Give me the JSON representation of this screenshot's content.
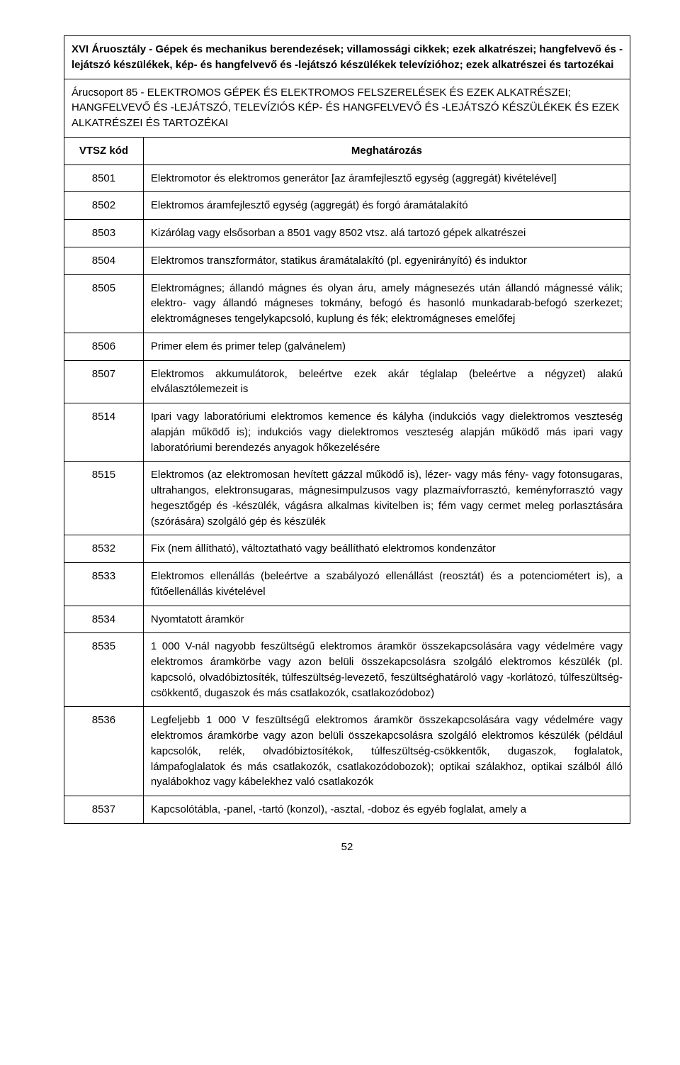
{
  "section_header": "XVI Áruosztály - Gépek és mechanikus berendezések; villamossági cikkek; ezek alkatrészei; hangfelvevő és -lejátszó készülékek, kép- és hangfelvevő és -lejátszó készülékek televízióhoz; ezek alkatrészei és tartozékai",
  "group_header": "Árucsoport 85 - ELEKTROMOS GÉPEK ÉS ELEKTROMOS FELSZERELÉSEK ÉS EZEK ALKATRÉSZEI; HANGFELVEVŐ ÉS -LEJÁTSZÓ, TELEVÍZIÓS KÉP- ÉS HANGFELVEVŐ ÉS -LEJÁTSZÓ KÉSZÜLÉKEK ÉS EZEK ALKATRÉSZEI ÉS TARTOZÉKAI",
  "columns": {
    "code": "VTSZ kód",
    "desc": "Meghatározás"
  },
  "rows": [
    {
      "code": "8501",
      "desc": "Elektromotor és elektromos generátor [az áramfejlesztő egység (aggregát) kivételével]"
    },
    {
      "code": "8502",
      "desc": "Elektromos áramfejlesztő egység (aggregát) és forgó áramátalakító"
    },
    {
      "code": "8503",
      "desc": "Kizárólag vagy elsősorban a 8501 vagy 8502 vtsz. alá tartozó gépek alkatrészei"
    },
    {
      "code": "8504",
      "desc": "Elektromos transzformátor, statikus áramátalakító (pl. egyenirányító) és induktor"
    },
    {
      "code": "8505",
      "desc": "Elektromágnes; állandó mágnes és olyan áru, amely mágnesezés után állandó mágnessé válik; elektro- vagy állandó mágneses tokmány, befogó és hasonló munkadarab-befogó szerkezet; elektromágneses tengelykapcsoló, kuplung és fék; elektromágneses emelőfej"
    },
    {
      "code": "8506",
      "desc": "Primer elem és primer telep (galvánelem)"
    },
    {
      "code": "8507",
      "desc": "Elektromos akkumulátorok, beleértve ezek akár téglalap (beleértve a négyzet) alakú elválasztólemezeit is"
    },
    {
      "code": "8514",
      "desc": "Ipari vagy laboratóriumi elektromos kemence és kályha (indukciós vagy dielektromos veszteség alapján működő is); indukciós vagy dielektromos veszteség alapján működő más ipari vagy laboratóriumi berendezés anyagok hőkezelésére"
    },
    {
      "code": "8515",
      "desc": "Elektromos (az elektromosan hevített gázzal működő is), lézer- vagy más fény- vagy fotonsugaras, ultrahangos, elektronsugaras, mágnesimpulzusos vagy plazmaívforrasztó, keményforrasztó vagy hegesztőgép és -készülék, vágásra alkalmas kivitelben is; fém vagy cermet meleg porlasztására (szórására) szolgáló gép és készülék"
    },
    {
      "code": "8532",
      "desc": "Fix (nem állítható), változtatható vagy beállítható elektromos kondenzátor"
    },
    {
      "code": "8533",
      "desc": "Elektromos ellenállás (beleértve a szabályozó ellenállást (reosztát) és a potenciométert is), a fűtőellenállás kivételével"
    },
    {
      "code": "8534",
      "desc": "Nyomtatott áramkör"
    },
    {
      "code": "8535",
      "desc": "1 000 V-nál nagyobb feszültségű elektromos áramkör összekapcsolására vagy védelmére vagy elektromos áramkörbe vagy azon belüli összekapcsolásra szolgáló elektromos készülék (pl. kapcsoló, olvadóbiztosíték, túlfeszültség-levezető, feszültséghatároló vagy -korlátozó, túlfeszültség-csökkentő, dugaszok és más csatlakozók, csatlakozódoboz)"
    },
    {
      "code": "8536",
      "desc": "Legfeljebb 1 000 V feszültségű elektromos áramkör összekapcsolására vagy védelmére vagy elektromos áramkörbe vagy azon belüli összekapcsolásra szolgáló elektromos készülék (például kapcsolók, relék, olvadóbiztosítékok, túlfeszültség-csökkentők, dugaszok, foglalatok, lámpafoglalatok és más csatlakozók, csatlakozódobozok); optikai szálakhoz, optikai szálból álló nyalábokhoz vagy kábelekhez való csatlakozók"
    },
    {
      "code": "8537",
      "desc": "Kapcsolótábla, -panel, -tartó (konzol), -asztal, -doboz és egyéb foglalat, amely a"
    }
  ],
  "page_number": "52"
}
